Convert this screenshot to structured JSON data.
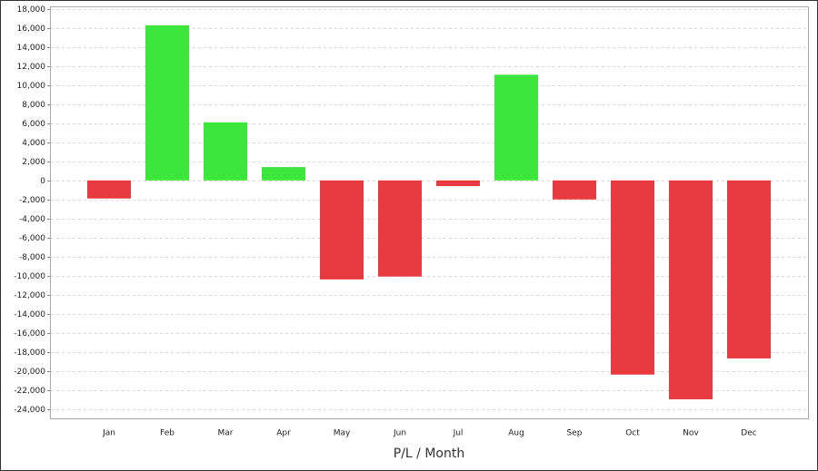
{
  "chart_data": {
    "type": "bar",
    "x_label": "P/L / Month",
    "categories": [
      "Jan",
      "Feb",
      "Mar",
      "Apr",
      "May",
      "Jun",
      "Jul",
      "Aug",
      "Sep",
      "Oct",
      "Nov",
      "Dec"
    ],
    "values": [
      -1900,
      16300,
      6100,
      1400,
      -10400,
      -10100,
      -600,
      11100,
      -2000,
      -20400,
      -23000,
      -18700
    ],
    "positive_color": "#3de63d",
    "negative_color": "#e8393e",
    "ylim": [
      -25000,
      18000
    ],
    "yticks": [
      {
        "value": -24000,
        "label": "-24,000"
      },
      {
        "value": -22000,
        "label": "-22,000"
      },
      {
        "value": -20000,
        "label": "-20,000"
      },
      {
        "value": -18000,
        "label": "-18,000"
      },
      {
        "value": -16000,
        "label": "-16,000"
      },
      {
        "value": -14000,
        "label": "-14,000"
      },
      {
        "value": -12000,
        "label": "-12,000"
      },
      {
        "value": -10000,
        "label": "-10,000"
      },
      {
        "value": -8000,
        "label": "-8,000"
      },
      {
        "value": -6000,
        "label": "-6,000"
      },
      {
        "value": -4000,
        "label": "-4,000"
      },
      {
        "value": -2000,
        "label": "-2,000"
      },
      0,
      {
        "value": 2000,
        "label": "2,000"
      },
      {
        "value": 4000,
        "label": "4,000"
      },
      {
        "value": 6000,
        "label": "6,000"
      },
      {
        "value": 8000,
        "label": "8,000"
      },
      {
        "value": 10000,
        "label": "10,000"
      },
      {
        "value": 12000,
        "label": "12,000"
      },
      {
        "value": 14000,
        "label": "14,000"
      },
      {
        "value": 16000,
        "label": "16,000"
      },
      {
        "value": 18000,
        "label": "18,000"
      }
    ],
    "grid": true
  }
}
